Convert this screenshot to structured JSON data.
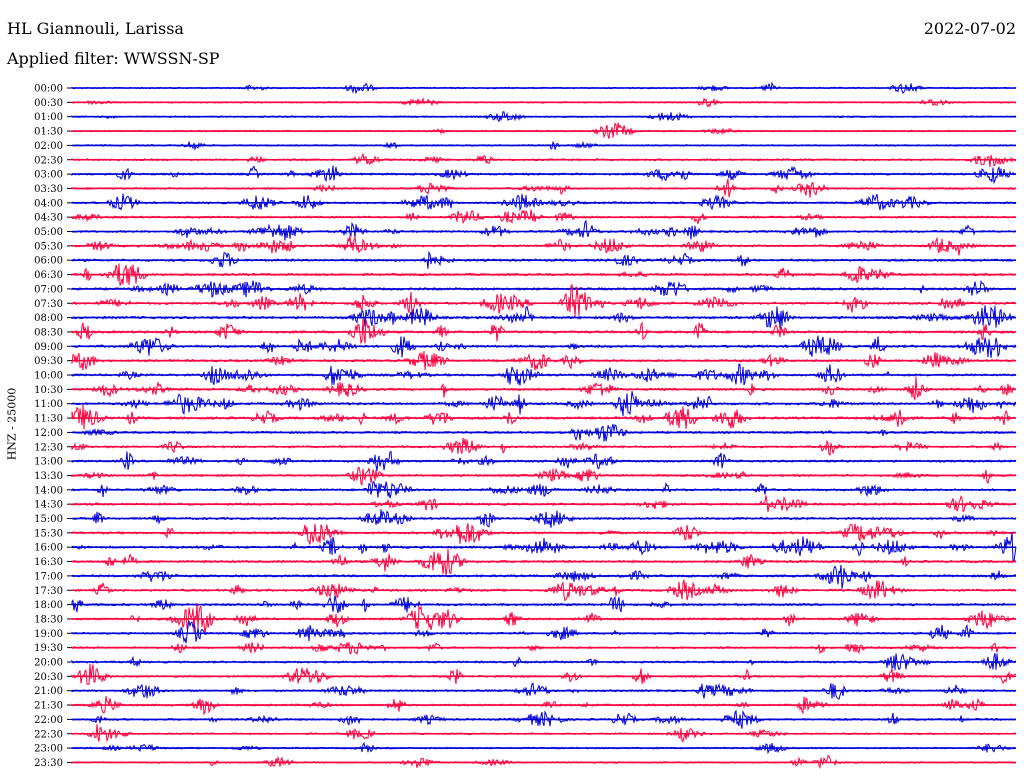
{
  "header": {
    "station": "HL Giannouli, Larissa",
    "date": "2022-07-02",
    "filter_label": "Applied filter: WWSSN-SP"
  },
  "chart_data": {
    "type": "line",
    "title": "HL Giannouli, Larissa",
    "ylabel": "HNZ - 25000",
    "xlabel": "",
    "rows": [
      "00:00",
      "00:30",
      "01:00",
      "01:30",
      "02:00",
      "02:30",
      "03:00",
      "03:30",
      "04:00",
      "04:30",
      "05:00",
      "05:30",
      "06:00",
      "06:30",
      "07:00",
      "07:30",
      "08:00",
      "08:30",
      "09:00",
      "09:30",
      "10:00",
      "10:30",
      "11:00",
      "11:30",
      "12:00",
      "12:30",
      "13:00",
      "13:30",
      "14:00",
      "14:30",
      "15:00",
      "15:30",
      "16:00",
      "16:30",
      "17:00",
      "17:30",
      "18:00",
      "18:30",
      "19:00",
      "19:30",
      "20:00",
      "20:30",
      "21:00",
      "21:30",
      "22:00",
      "22:30",
      "23:00",
      "23:30"
    ],
    "trace_minutes": 30,
    "colors": {
      "even_rows": "#0000d8",
      "odd_rows": "#ff0040"
    },
    "activity_level": [
      0.15,
      0.18,
      0.2,
      0.2,
      0.2,
      0.45,
      0.5,
      0.4,
      0.45,
      0.5,
      0.5,
      0.55,
      0.65,
      0.65,
      0.7,
      0.7,
      0.75,
      0.75,
      0.7,
      0.65,
      0.6,
      0.65,
      0.7,
      0.7,
      0.6,
      0.55,
      0.55,
      0.55,
      0.55,
      0.6,
      0.6,
      0.6,
      0.65,
      0.65,
      0.6,
      0.6,
      0.65,
      0.55,
      0.45,
      0.45,
      0.45,
      0.45,
      0.45,
      0.45,
      0.45,
      0.3,
      0.25,
      0.2
    ]
  }
}
